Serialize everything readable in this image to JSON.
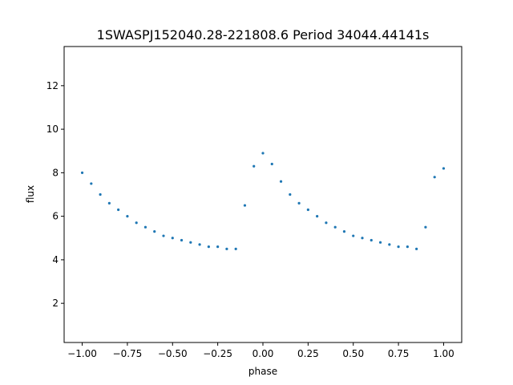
{
  "chart_data": {
    "type": "scatter",
    "title": "1SWASPJ152040.28-221808.6 Period 34044.44141s",
    "xlabel": "phase",
    "ylabel": "flux",
    "xlim": [
      -1.1,
      1.1
    ],
    "ylim": [
      0.2,
      13.8
    ],
    "xticks": [
      -1.0,
      -0.75,
      -0.5,
      -0.25,
      0.0,
      0.25,
      0.5,
      0.75,
      1.0
    ],
    "xtick_labels": [
      "−1.00",
      "−0.75",
      "−0.50",
      "−0.25",
      "0.00",
      "0.25",
      "0.50",
      "0.75",
      "1.00"
    ],
    "yticks": [
      2,
      4,
      6,
      8,
      10,
      12
    ],
    "ytick_labels": [
      "2",
      "4",
      "6",
      "8",
      "10",
      "12"
    ],
    "grid": false,
    "marker_color": "#1f77b4",
    "series": [
      {
        "x": [
          -1.0,
          -0.95,
          -0.9,
          -0.85,
          -0.8,
          -0.75,
          -0.7,
          -0.65,
          -0.6,
          -0.55,
          -0.5,
          -0.45,
          -0.4,
          -0.35,
          -0.3,
          -0.25,
          -0.2,
          -0.15,
          -0.1,
          -0.05,
          0.0,
          0.05,
          0.1,
          0.15,
          0.2,
          0.25,
          0.3,
          0.35,
          0.4,
          0.45,
          0.5,
          0.55,
          0.6,
          0.65,
          0.7,
          0.75,
          0.8,
          0.85,
          0.9,
          0.95,
          1.0
        ],
        "y": [
          8.0,
          7.5,
          7.0,
          6.6,
          6.3,
          6.0,
          5.7,
          5.5,
          5.3,
          5.1,
          5.0,
          4.9,
          4.8,
          4.7,
          4.6,
          4.6,
          4.5,
          4.5,
          6.5,
          8.3,
          8.9,
          8.4,
          7.6,
          7.0,
          6.6,
          6.3,
          6.0,
          5.7,
          5.5,
          5.3,
          5.1,
          5.0,
          4.9,
          4.8,
          4.7,
          4.6,
          4.6,
          4.5,
          5.5,
          7.8,
          8.2
        ]
      }
    ]
  }
}
